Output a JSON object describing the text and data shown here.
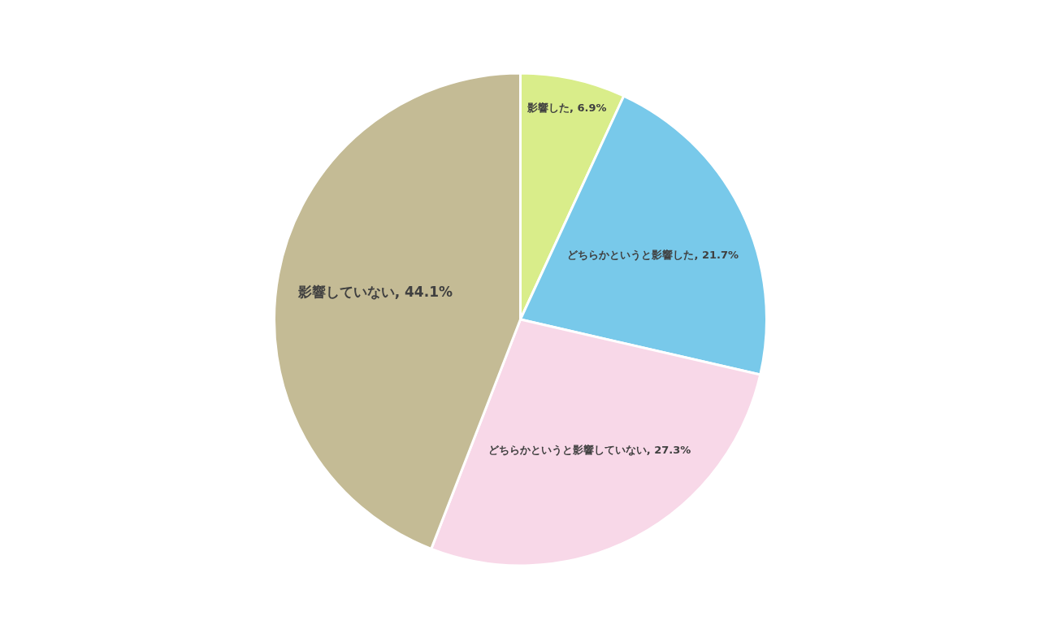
{
  "chart_data": {
    "type": "pie",
    "categories": [
      "影響した",
      "どちらかというと影響した",
      "どちらかというと影響していない",
      "影響していない"
    ],
    "values": [
      6.9,
      21.7,
      27.3,
      44.1
    ],
    "colors": [
      "#d9ed8a",
      "#78c9ea",
      "#f8d8e8",
      "#c4bb95"
    ],
    "value_labels": [
      "6.9%",
      "21.7%",
      "27.3%",
      "44.1%"
    ]
  }
}
